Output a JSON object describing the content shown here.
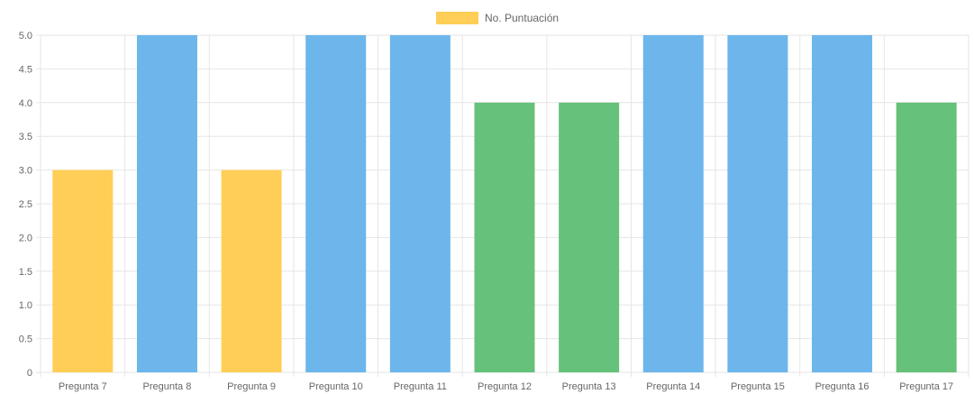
{
  "chart_data": {
    "type": "bar",
    "legend": {
      "label": "No. Puntuación",
      "color": "#FFCE56",
      "position": "top"
    },
    "categories": [
      "Pregunta 7",
      "Pregunta 8",
      "Pregunta 9",
      "Pregunta 10",
      "Pregunta 11",
      "Pregunta 12",
      "Pregunta 13",
      "Pregunta 14",
      "Pregunta 15",
      "Pregunta 16",
      "Pregunta 17"
    ],
    "series": [
      {
        "name": "No. Puntuación",
        "values": [
          3,
          5,
          3,
          5,
          5,
          4,
          4,
          5,
          5,
          5,
          4
        ]
      }
    ],
    "bar_colors": [
      "#FFCE56",
      "#6CB6EB",
      "#FFCE56",
      "#6CB6EB",
      "#6CB6EB",
      "#66C17A",
      "#66C17A",
      "#6CB6EB",
      "#6CB6EB",
      "#6CB6EB",
      "#66C17A"
    ],
    "ylim": [
      0,
      5
    ],
    "yticks": [
      {
        "value": 0,
        "label": "0"
      },
      {
        "value": 0.5,
        "label": "0.5"
      },
      {
        "value": 1,
        "label": "1.0"
      },
      {
        "value": 1.5,
        "label": "1.5"
      },
      {
        "value": 2,
        "label": "2.0"
      },
      {
        "value": 2.5,
        "label": "2.5"
      },
      {
        "value": 3,
        "label": "3.0"
      },
      {
        "value": 3.5,
        "label": "3.5"
      },
      {
        "value": 4,
        "label": "4.0"
      },
      {
        "value": 4.5,
        "label": "4.5"
      },
      {
        "value": 5,
        "label": "5.0"
      }
    ],
    "grid": true,
    "grid_color": "#E6E6E6"
  }
}
